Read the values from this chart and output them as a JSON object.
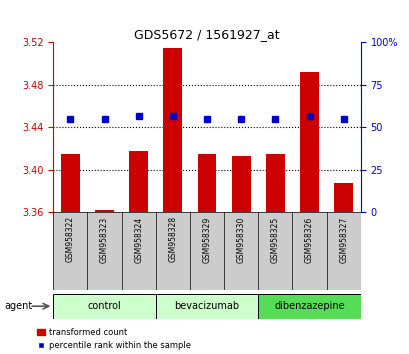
{
  "title": "GDS5672 / 1561927_at",
  "samples": [
    "GSM958322",
    "GSM958323",
    "GSM958324",
    "GSM958328",
    "GSM958329",
    "GSM958330",
    "GSM958325",
    "GSM958326",
    "GSM958327"
  ],
  "red_values": [
    3.415,
    3.362,
    3.418,
    3.515,
    3.415,
    3.413,
    3.415,
    3.492,
    3.388
  ],
  "blue_values": [
    55,
    55,
    57,
    57,
    55,
    55,
    55,
    57,
    55
  ],
  "group_data": [
    {
      "label": "control",
      "start": 0,
      "end": 3,
      "color": "#ccffcc"
    },
    {
      "label": "bevacizumab",
      "start": 3,
      "end": 6,
      "color": "#ccffcc"
    },
    {
      "label": "dibenzazepine",
      "start": 6,
      "end": 9,
      "color": "#55dd55"
    }
  ],
  "ylim_left": [
    3.36,
    3.52
  ],
  "ylim_right": [
    0,
    100
  ],
  "yticks_left": [
    3.36,
    3.4,
    3.44,
    3.48,
    3.52
  ],
  "yticks_right": [
    0,
    25,
    50,
    75,
    100
  ],
  "bar_color": "#cc0000",
  "marker_color": "#0000cc",
  "left_axis_color": "#cc0000",
  "right_axis_color": "#0000cc",
  "background_color": "#ffffff",
  "label_bg_color": "#cccccc",
  "grid_color": "#000000",
  "bar_width": 0.55,
  "baseline": 3.36,
  "grid_lines": [
    3.4,
    3.44,
    3.48
  ],
  "agent_label": "agent",
  "legend_entries": [
    "transformed count",
    "percentile rank within the sample"
  ]
}
